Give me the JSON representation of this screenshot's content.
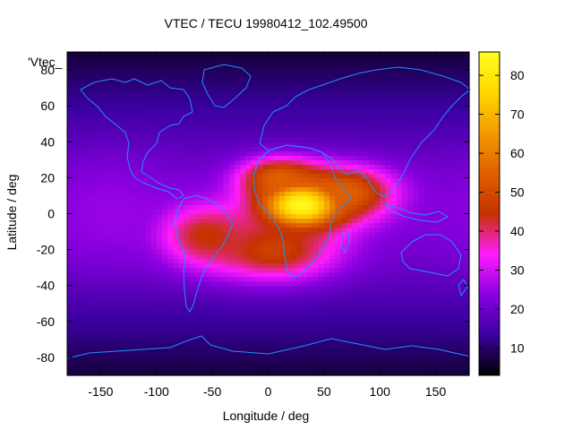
{
  "chart_data": {
    "type": "heatmap",
    "title": "VTEC / TECU 19980412_102.49500",
    "xlabel": "Longitude / deg",
    "ylabel": "Latitude / deg",
    "legend_entry": "'Vtec_",
    "xlim": [
      -180,
      180
    ],
    "ylim": [
      -90,
      90
    ],
    "x_ticks": [
      -150,
      -100,
      -50,
      0,
      50,
      100,
      150
    ],
    "y_ticks": [
      -80,
      -60,
      -40,
      -20,
      0,
      20,
      40,
      60,
      80
    ],
    "colorbar": {
      "range": [
        3,
        86
      ],
      "ticks": [
        10,
        20,
        30,
        40,
        50,
        60,
        70,
        80
      ]
    },
    "colormap": [
      "#000000",
      "#3a00a0",
      "#8a00e0",
      "#ff1cff",
      "#c43200",
      "#e06000",
      "#f49a00",
      "#ffd800",
      "#ffff20"
    ],
    "coastline_color": "#1e8fff",
    "features": [
      {
        "name": "equatorial-africa-peak",
        "lon": 30,
        "lat": 5,
        "vtec": 85,
        "sigma_lon": 28,
        "sigma_lat": 10
      },
      {
        "name": "arabia-india-band",
        "lon": 70,
        "lat": 12,
        "vtec": 55,
        "sigma_lon": 30,
        "sigma_lat": 10
      },
      {
        "name": "south-atlantic-africa",
        "lon": 5,
        "lat": -20,
        "vtec": 48,
        "sigma_lon": 40,
        "sigma_lat": 12
      },
      {
        "name": "south-america",
        "lon": -55,
        "lat": -12,
        "vtec": 45,
        "sigma_lon": 28,
        "sigma_lat": 12
      },
      {
        "name": "north-africa",
        "lon": 10,
        "lat": 20,
        "vtec": 55,
        "sigma_lon": 25,
        "sigma_lat": 8
      },
      {
        "name": "pacific-background",
        "lon": -140,
        "lat": 0,
        "vtec": 25,
        "sigma_lon": 40,
        "sigma_lat": 20
      }
    ]
  }
}
